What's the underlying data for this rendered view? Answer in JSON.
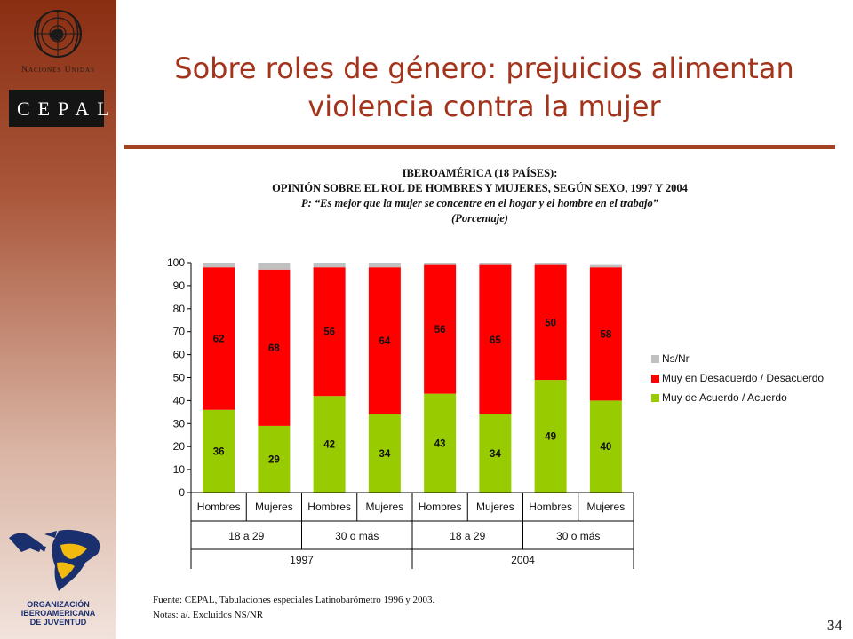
{
  "branding": {
    "un_label": "Naciones Unidas",
    "cepal_label": "CEPAL",
    "oij_label": [
      "ORGANIZACIÓN",
      "IBEROAMERICANA",
      "DE JUVENTUD"
    ]
  },
  "slide": {
    "title_line1": "Sobre roles de género: prejuicios alimentan",
    "title_line2": "violencia contra la mujer",
    "page_number": "34"
  },
  "chart_header": {
    "line1": "IBEROAMÉRICA (18 PAÍSES):",
    "line2": "OPINIÓN SOBRE EL ROL DE HOMBRES Y MUJERES, SEGÚN SEXO, 1997 Y 2004",
    "line3": "P: “Es mejor que la mujer se concentre en el hogar y el hombre en el trabajo”",
    "line4": "(Porcentaje)"
  },
  "footer": {
    "source": "Fuente: CEPAL,  Tabulaciones especiales Latinobarómetro 1996 y 2003.",
    "notes": "Notas: a/. Excluidos NS/NR"
  },
  "colors": {
    "agree": "#99cc00",
    "disagree": "#ff0000",
    "nsnr": "#c0c0c0",
    "title": "#a3341b"
  },
  "chart_data": {
    "type": "bar",
    "stacked": true,
    "categories": [
      "Hombres",
      "Mujeres",
      "Hombres",
      "Mujeres",
      "Hombres",
      "Mujeres",
      "Hombres",
      "Mujeres"
    ],
    "age_groups": [
      "18 a 29",
      "30 o más",
      "18 a 29",
      "30 o más"
    ],
    "years": [
      "1997",
      "2004"
    ],
    "series": [
      {
        "name": "Muy de Acuerdo / Acuerdo",
        "values": [
          36,
          29,
          42,
          34,
          43,
          34,
          49,
          40
        ],
        "labels": [
          "36",
          "29",
          "42",
          "34",
          "43",
          "34",
          "49",
          "40"
        ]
      },
      {
        "name": "Muy en Desacuerdo / Desacuerdo",
        "values": [
          62,
          68,
          56,
          64,
          56,
          65,
          50,
          58
        ],
        "labels": [
          "62",
          "68",
          "56",
          "64",
          "56",
          "65",
          "50",
          "58"
        ]
      },
      {
        "name": "Ns/Nr",
        "values": [
          2,
          3,
          2,
          2,
          1,
          1,
          1,
          1
        ]
      }
    ],
    "legend_order": [
      "Ns/Nr",
      "Muy en Desacuerdo / Desacuerdo",
      "Muy de Acuerdo / Acuerdo"
    ],
    "yticks": [
      "0",
      "10",
      "20",
      "30",
      "40",
      "50",
      "60",
      "70",
      "80",
      "90",
      "100"
    ],
    "ylim": [
      0,
      100
    ],
    "legend_position": "right"
  }
}
